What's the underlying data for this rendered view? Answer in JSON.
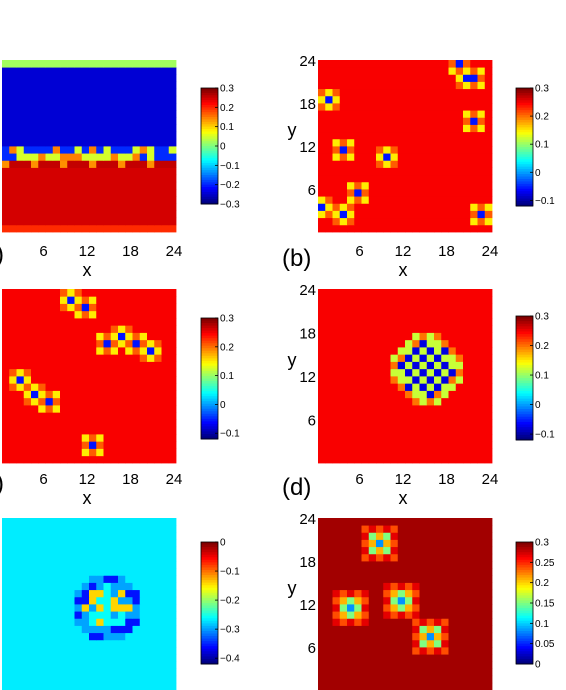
{
  "colormap": "jet",
  "chart_data": [
    {
      "id": "a",
      "type": "heatmap",
      "panel_label": "",
      "grid": 24,
      "xlabel": "x",
      "ylabel": "",
      "xticks": [
        "6",
        "12",
        "18",
        "24"
      ],
      "yticks": [],
      "colorbar": {
        "min": -0.3,
        "max": 0.3,
        "ticks": [
          {
            "v": 0.3,
            "t": "0.3"
          },
          {
            "v": 0.2,
            "t": "0.2"
          },
          {
            "v": 0.1,
            "t": "0.1"
          },
          {
            "v": 0,
            "t": "0"
          },
          {
            "v": -0.1,
            "t": "−0.1"
          },
          {
            "v": -0.2,
            "t": "−0.2"
          },
          {
            "v": -0.3,
            "t": "−0.3"
          }
        ]
      },
      "pattern": {
        "kind": "stripes"
      }
    },
    {
      "id": "b",
      "type": "heatmap",
      "panel_label": "(b)",
      "grid": 24,
      "xlabel": "x",
      "ylabel": "y",
      "xticks": [
        "6",
        "12",
        "18",
        "24"
      ],
      "yticks": [
        "6",
        "12",
        "18",
        "24"
      ],
      "colorbar": {
        "min": -0.12,
        "max": 0.3,
        "ticks": [
          {
            "v": 0.3,
            "t": "0.3"
          },
          {
            "v": 0.2,
            "t": "0.2"
          },
          {
            "v": 0.1,
            "t": "0.1"
          },
          {
            "v": 0,
            "t": "0"
          },
          {
            "v": -0.1,
            "t": "−0.1"
          }
        ]
      },
      "pattern": {
        "kind": "spots",
        "bg": 0.25,
        "spots": [
          [
            20,
            24
          ],
          [
            21,
            22
          ],
          [
            2,
            19
          ],
          [
            4,
            12
          ],
          [
            10,
            11
          ],
          [
            22,
            22
          ],
          [
            22,
            16
          ],
          [
            6,
            6
          ],
          [
            4,
            3
          ],
          [
            23,
            3
          ],
          [
            1,
            4
          ]
        ]
      }
    },
    {
      "id": "c",
      "type": "heatmap",
      "panel_label": "",
      "grid": 24,
      "xlabel": "x",
      "ylabel": "",
      "xticks": [
        "6",
        "12",
        "18",
        "24"
      ],
      "yticks": [],
      "colorbar": {
        "min": -0.12,
        "max": 0.3,
        "ticks": [
          {
            "v": 0.3,
            "t": "0.3"
          },
          {
            "v": 0.2,
            "t": "0.2"
          },
          {
            "v": 0.1,
            "t": "0.1"
          },
          {
            "v": 0,
            "t": "0"
          },
          {
            "v": -0.1,
            "t": "−0.1"
          }
        ]
      },
      "pattern": {
        "kind": "spots",
        "bg": 0.25,
        "spots": [
          [
            10,
            23
          ],
          [
            12,
            22
          ],
          [
            17,
            18
          ],
          [
            19,
            17
          ],
          [
            21,
            16
          ],
          [
            3,
            12
          ],
          [
            5,
            10
          ],
          [
            7,
            9
          ],
          [
            13,
            3
          ],
          [
            15,
            17
          ]
        ]
      }
    },
    {
      "id": "d",
      "type": "heatmap",
      "panel_label": "(d)",
      "grid": 24,
      "xlabel": "x",
      "ylabel": "y",
      "xticks": [
        "6",
        "12",
        "18",
        "24"
      ],
      "yticks": [
        "6",
        "12",
        "18",
        "24"
      ],
      "colorbar": {
        "min": -0.12,
        "max": 0.3,
        "ticks": [
          {
            "v": 0.3,
            "t": "0.3"
          },
          {
            "v": 0.2,
            "t": "0.2"
          },
          {
            "v": 0.1,
            "t": "0.1"
          },
          {
            "v": 0,
            "t": "0"
          },
          {
            "v": -0.1,
            "t": "−0.1"
          }
        ]
      },
      "pattern": {
        "kind": "checkerblob",
        "bg": 0.25,
        "center": [
          15.5,
          13.5
        ],
        "radius": 4.8
      }
    },
    {
      "id": "e",
      "type": "heatmap",
      "panel_label": "",
      "grid": 24,
      "xlabel": "",
      "ylabel": "",
      "xticks": [],
      "yticks": [],
      "colorbar": {
        "min": -0.42,
        "max": 0.0,
        "ticks": [
          {
            "v": 0,
            "t": "0"
          },
          {
            "v": -0.1,
            "t": "−0.1"
          },
          {
            "v": -0.2,
            "t": "−0.2"
          },
          {
            "v": -0.3,
            "t": "−0.3"
          },
          {
            "v": -0.4,
            "t": "−0.4"
          }
        ]
      },
      "pattern": {
        "kind": "ring",
        "bg": -0.27,
        "center": [
          15,
          12
        ],
        "radius": 4.2
      }
    },
    {
      "id": "f",
      "type": "heatmap",
      "panel_label": "",
      "grid": 24,
      "xlabel": "",
      "ylabel": "y",
      "xticks": [],
      "yticks": [
        "6",
        "12",
        "18",
        "24"
      ],
      "colorbar": {
        "min": 0.0,
        "max": 0.3,
        "ticks": [
          {
            "v": 0.3,
            "t": "0.3"
          },
          {
            "v": 0.25,
            "t": "0.25"
          },
          {
            "v": 0.2,
            "t": "0.2"
          },
          {
            "v": 0.15,
            "t": "0.15"
          },
          {
            "v": 0.1,
            "t": "0.1"
          },
          {
            "v": 0.05,
            "t": "0.05"
          },
          {
            "v": 0,
            "t": "0"
          }
        ]
      },
      "pattern": {
        "kind": "multiblob",
        "bg": 0.29,
        "spots": [
          [
            9,
            21
          ],
          [
            5,
            12
          ],
          [
            12,
            13
          ],
          [
            16,
            8
          ]
        ]
      }
    }
  ]
}
